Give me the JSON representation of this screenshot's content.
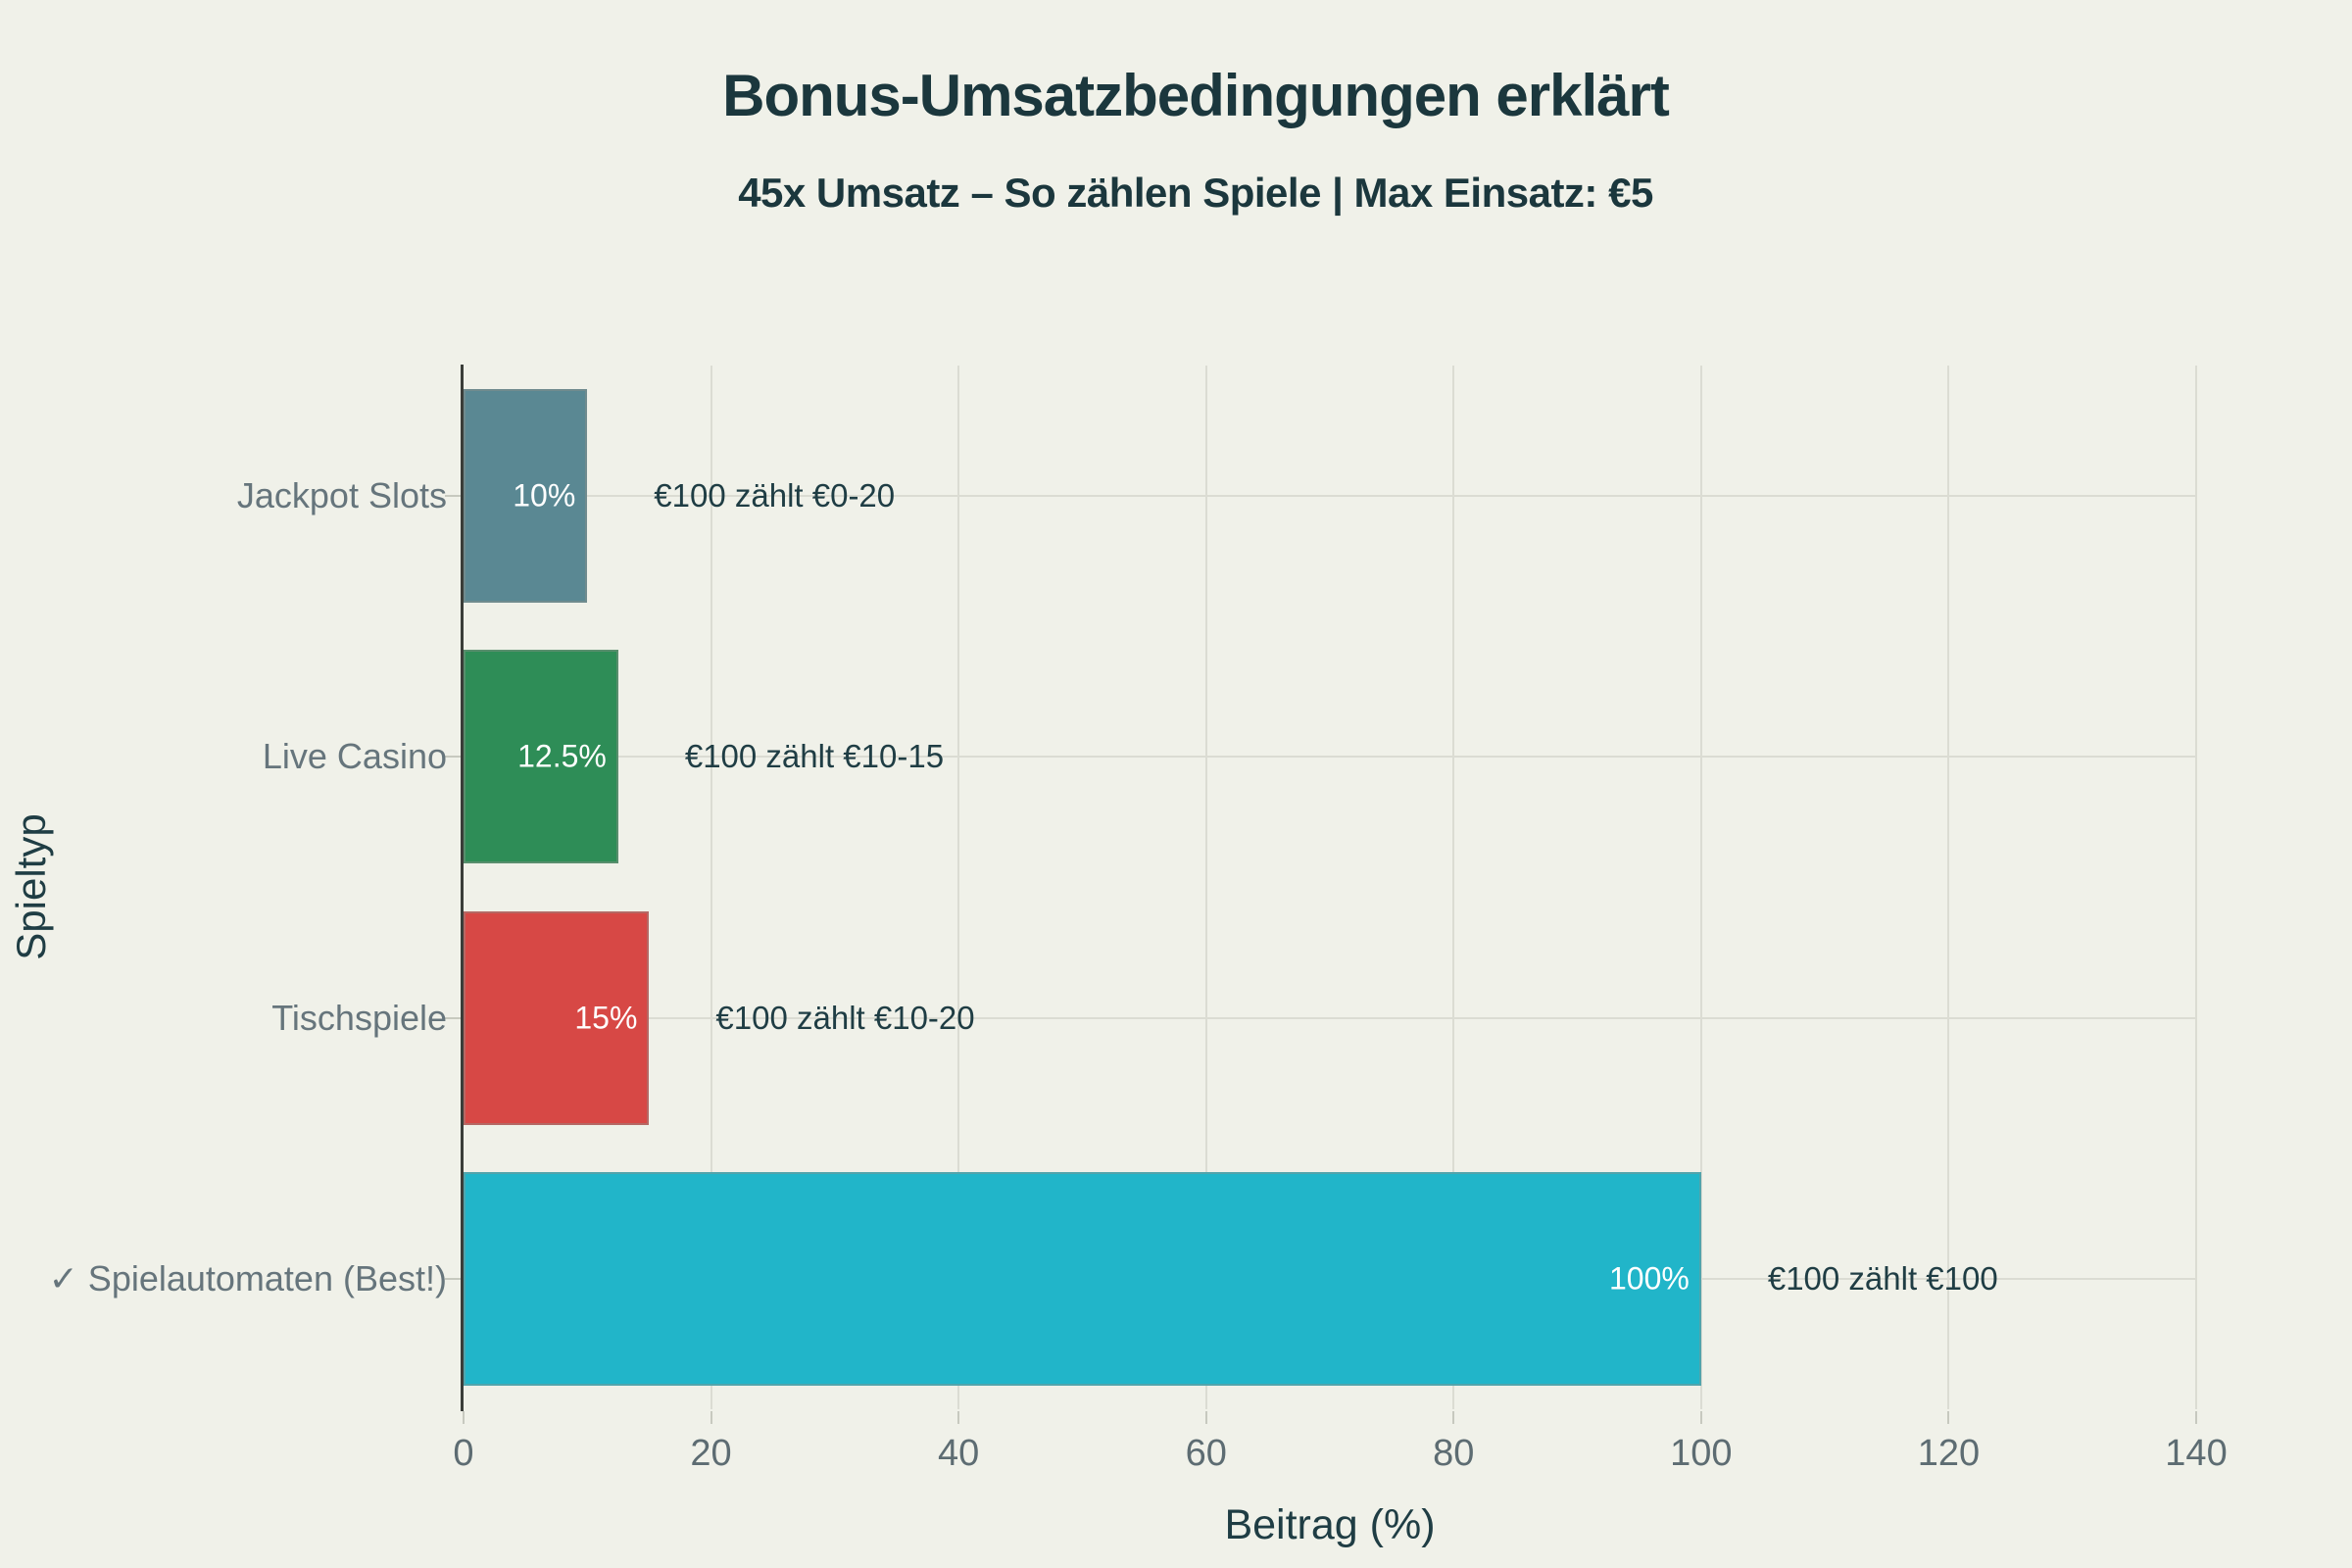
{
  "colors": {
    "background": "#f0f1e9",
    "title": "#1b373d",
    "subtitle": "#1b373d",
    "axis_label": "#1f3d44",
    "category_label": "#66757c",
    "tick_label": "#5d6c72",
    "annotation": "#1f3d44",
    "bar_value_text": "#ffffff",
    "spine": "#3a3d39",
    "grid": "#dbdcd3",
    "tick_mark": "#c7c9bf"
  },
  "chart_data": {
    "type": "bar",
    "orientation": "horizontal",
    "title": "Bonus-Umsatzbedingungen erklärt",
    "subtitle": "45x Umsatz – So zählen Spiele | Max Einsatz: €5",
    "categories": [
      "Jackpot Slots",
      "Live Casino",
      "Tischspiele",
      "✓ Spielautomaten (Best!)"
    ],
    "values": [
      10,
      12.5,
      15,
      100
    ],
    "value_labels": [
      "10%",
      "12.5%",
      "15%",
      "100%"
    ],
    "annotations": [
      "€100 zählt €0-20",
      "€100 zählt €10-15",
      "€100 zählt €10-20",
      "€100 zählt €100"
    ],
    "bar_colors": [
      "#5a8893",
      "#2e8d57",
      "#d74845",
      "#21b5c9"
    ],
    "xlabel": "Beitrag (%)",
    "ylabel": "Spieltyp",
    "xlim": [
      0,
      140
    ],
    "xticks": [
      0,
      20,
      40,
      60,
      80,
      100,
      120,
      140
    ],
    "grid": true,
    "legend": false
  }
}
